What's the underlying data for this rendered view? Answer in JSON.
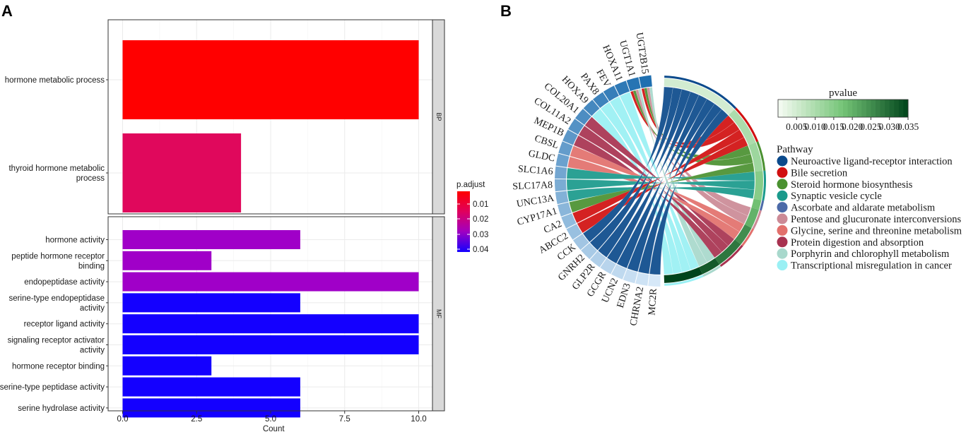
{
  "panel_a_label": "A",
  "panel_b_label": "B",
  "chart_data": [
    {
      "type": "bar",
      "orientation": "horizontal",
      "xlabel": "Count",
      "xlim": [
        0,
        10.5
      ],
      "x_ticks": [
        "0.0",
        "2.5",
        "5.0",
        "7.5",
        "10.0"
      ],
      "x_tick_values": [
        0,
        2.5,
        5,
        7.5,
        10
      ],
      "legend_title": "p.adjust",
      "legend_ticks": [
        "0.01",
        "0.02",
        "0.03",
        "0.04"
      ],
      "legend_colors": [
        "#ff0000",
        "#e0005c",
        "#a200c0",
        "#1400ff"
      ],
      "facets": [
        {
          "label": "BP",
          "categories": [
            {
              "lines": [
                "hormone metabolic process"
              ],
              "count": 10,
              "color": "#ff0000"
            },
            {
              "lines": [
                "thyroid hormone metabolic",
                "process"
              ],
              "count": 4,
              "color": "#e0085c"
            }
          ]
        },
        {
          "label": "MF",
          "categories": [
            {
              "lines": [
                "hormone activity"
              ],
              "count": 6,
              "color": "#a000c8"
            },
            {
              "lines": [
                "peptide hormone receptor",
                "binding"
              ],
              "count": 3,
              "color": "#a000c8"
            },
            {
              "lines": [
                "endopeptidase activity"
              ],
              "count": 10,
              "color": "#a000c8"
            },
            {
              "lines": [
                "serine-type endopeptidase",
                "activity"
              ],
              "count": 6,
              "color": "#1400ff"
            },
            {
              "lines": [
                "receptor ligand activity"
              ],
              "count": 10,
              "color": "#1400ff"
            },
            {
              "lines": [
                "signaling receptor activator",
                "activity"
              ],
              "count": 10,
              "color": "#1400ff"
            },
            {
              "lines": [
                "hormone receptor binding"
              ],
              "count": 3,
              "color": "#1400ff"
            },
            {
              "lines": [
                "serine-type peptidase activity"
              ],
              "count": 6,
              "color": "#1400ff"
            },
            {
              "lines": [
                "serine hydrolase activity"
              ],
              "count": 6,
              "color": "#1400ff"
            }
          ]
        }
      ]
    },
    {
      "type": "chord",
      "genes": [
        "UGT2B15",
        "UGT1A1",
        "HOXA11",
        "FEV",
        "PAX8",
        "HOXA9",
        "COL20A1",
        "COL11A2",
        "MEP1B",
        "CBSL",
        "GLDC",
        "SLC1A6",
        "SLC17A8",
        "UNC13A",
        "CYP17A1",
        "CA2",
        "ABCC2",
        "CCK",
        "GNRH2",
        "GLP2R",
        "GCGR",
        "UCN2",
        "EDN3",
        "CHRNA2",
        "MC2R"
      ],
      "gene_pathways": [
        [
          "Bile secretion",
          "Steroid hormone biosynthesis",
          "Pentose and glucuronate interconversions",
          "Porphyrin and chlorophyll metabolism"
        ],
        [
          "Bile secretion",
          "Steroid hormone biosynthesis",
          "Pentose and glucuronate interconversions",
          "Porphyrin and chlorophyll metabolism"
        ],
        [
          "Transcriptional misregulation in cancer"
        ],
        [
          "Transcriptional misregulation in cancer"
        ],
        [
          "Transcriptional misregulation in cancer"
        ],
        [
          "Transcriptional misregulation in cancer"
        ],
        [
          "Protein digestion and absorption"
        ],
        [
          "Protein digestion and absorption"
        ],
        [
          "Protein digestion and absorption"
        ],
        [
          "Glycine, serine and threonine metabolism"
        ],
        [
          "Glycine, serine and threonine metabolism"
        ],
        [
          "Synaptic vesicle cycle"
        ],
        [
          "Synaptic vesicle cycle"
        ],
        [
          "Synaptic vesicle cycle"
        ],
        [
          "Steroid hormone biosynthesis"
        ],
        [
          "Bile secretion"
        ],
        [
          "Bile secretion"
        ],
        [
          "Neuroactive ligand-receptor interaction"
        ],
        [
          "Neuroactive ligand-receptor interaction"
        ],
        [
          "Neuroactive ligand-receptor interaction"
        ],
        [
          "Neuroactive ligand-receptor interaction"
        ],
        [
          "Neuroactive ligand-receptor interaction"
        ],
        [
          "Neuroactive ligand-receptor interaction"
        ],
        [
          "Neuroactive ligand-receptor interaction"
        ],
        [
          "Neuroactive ligand-receptor interaction"
        ]
      ],
      "pathways": [
        {
          "name": "Neuroactive ligand-receptor interaction",
          "color": "#0b4a8c",
          "weight": 8,
          "pvalue": 0.005
        },
        {
          "name": "Bile secretion",
          "color": "#d11010",
          "weight": 4,
          "pvalue": 0.01
        },
        {
          "name": "Steroid hormone biosynthesis",
          "color": "#4a9130",
          "weight": 3,
          "pvalue": 0.012
        },
        {
          "name": "Synaptic vesicle cycle",
          "color": "#1a9a8c",
          "weight": 3,
          "pvalue": 0.015
        },
        {
          "name": "Ascorbate and aldarate metabolism",
          "color": "#4c6aa8",
          "weight": 1,
          "pvalue": 0.018
        },
        {
          "name": "Pentose and glucuronate interconversions",
          "color": "#cc8a96",
          "weight": 2,
          "pvalue": 0.02
        },
        {
          "name": "Glycine, serine and threonine metabolism",
          "color": "#e2706c",
          "weight": 2,
          "pvalue": 0.025
        },
        {
          "name": "Protein digestion and absorption",
          "color": "#a83250",
          "weight": 3,
          "pvalue": 0.028
        },
        {
          "name": "Porphyrin and chlorophyll metabolism",
          "color": "#a8d8cc",
          "weight": 2,
          "pvalue": 0.032
        },
        {
          "name": "Transcriptional misregulation in cancer",
          "color": "#9af0f4",
          "weight": 4,
          "pvalue": 0.035
        }
      ],
      "pvalue_legend_title": "pvalue",
      "pvalue_ticks": [
        "0.005",
        "0.010",
        "0.015",
        "0.020",
        "0.025",
        "0.030",
        "0.035"
      ],
      "pvalue_range": [
        0,
        0.035
      ],
      "pathway_legend_title": "Pathway"
    }
  ]
}
